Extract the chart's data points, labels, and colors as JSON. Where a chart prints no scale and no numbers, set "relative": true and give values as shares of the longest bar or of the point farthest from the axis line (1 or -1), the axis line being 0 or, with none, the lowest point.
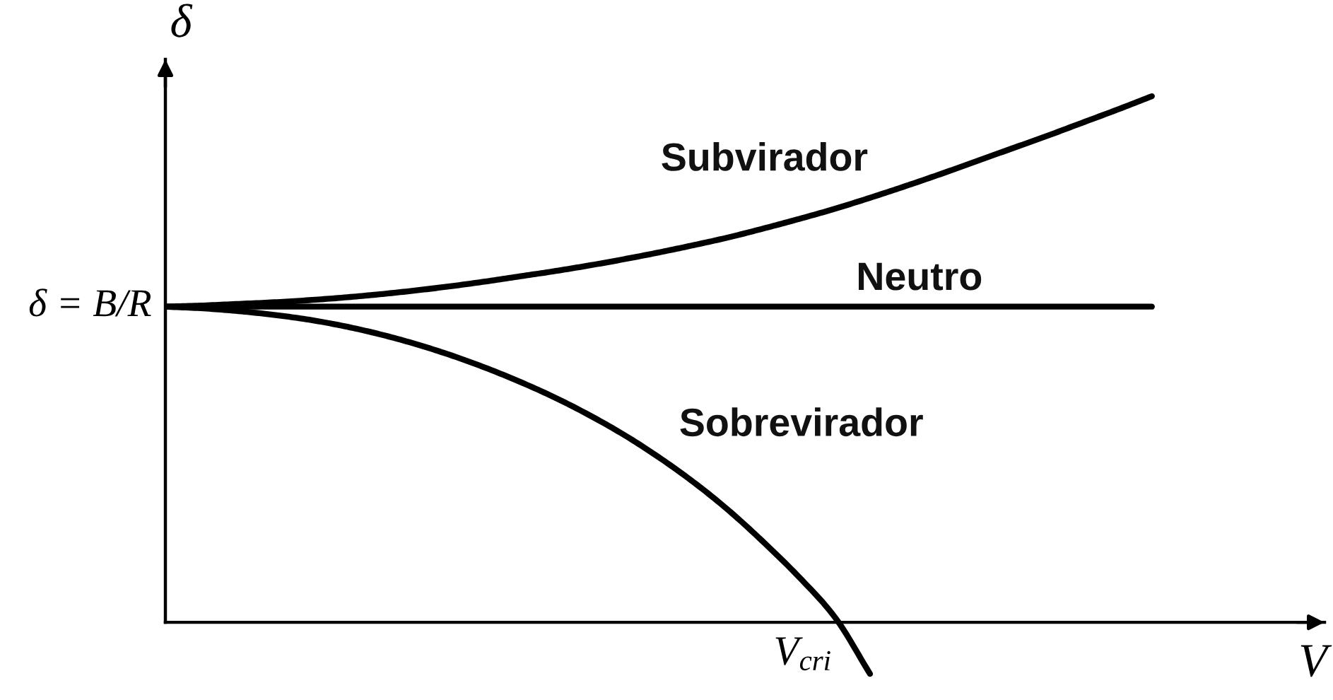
{
  "chart_data": {
    "type": "line",
    "relative": true,
    "xlabel": "V",
    "ylabel": "δ",
    "line_style": "solid",
    "categories": [
      null,
      null,
      null,
      null,
      null,
      null,
      null,
      null,
      null,
      null,
      null,
      null,
      null,
      null,
      null,
      null,
      null,
      null,
      null,
      null,
      null,
      null,
      null,
      null,
      null,
      null,
      null,
      null,
      null
    ],
    "annotations": [
      "δ = B/R",
      "V$_{cri}$"
    ],
    "series": [
      {
        "name": "Subvirador",
        "color": "#000000",
        "values": [
          0.6,
          0.602,
          0.605,
          0.608,
          0.612,
          0.617,
          0.623,
          0.63,
          0.638,
          0.647,
          0.657,
          0.667,
          0.678,
          0.69,
          0.703,
          0.717,
          0.732,
          0.749,
          0.767,
          0.786,
          0.807,
          0.829,
          0.852,
          0.876,
          0.9,
          0.924,
          0.949,
          0.974,
          1
        ]
      },
      {
        "name": "Neutro",
        "color": "#000000",
        "values": [
          0.6,
          0.6,
          0.6,
          0.6,
          0.6,
          0.6,
          0.6,
          0.6,
          0.6,
          0.6,
          0.6,
          0.6,
          0.6,
          0.6,
          0.6,
          0.6,
          0.6,
          0.6,
          0.6,
          0.6,
          0.6,
          0.6,
          0.6,
          0.6,
          0.6,
          0.6,
          0.6,
          0.6,
          0.6
        ]
      },
      {
        "name": "Sobrevirador",
        "color": "#000000",
        "values": [
          0.6,
          0.597,
          0.592,
          0.585,
          0.576,
          0.564,
          0.549,
          0.531,
          0.51,
          0.486,
          0.459,
          0.429,
          0.395,
          0.357,
          0.314,
          0.266,
          0.212,
          0.151,
          0.085,
          0.01,
          -0.098,
          null,
          null,
          null,
          null,
          null,
          null,
          null,
          null
        ]
      }
    ]
  }
}
